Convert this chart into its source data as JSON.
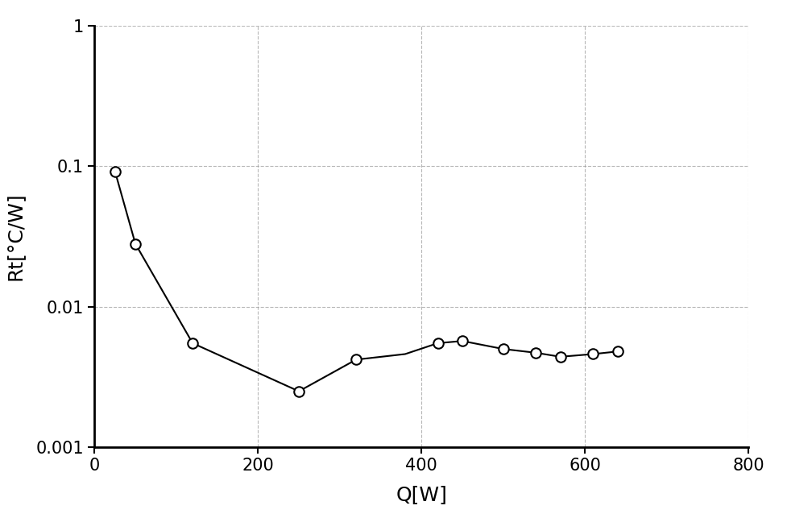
{
  "x": [
    25,
    50,
    120,
    250,
    320,
    380,
    420,
    450,
    500,
    540,
    570,
    610,
    640
  ],
  "y": [
    0.092,
    0.028,
    0.0055,
    0.0025,
    0.0042,
    0.0046,
    0.0055,
    0.0057,
    0.005,
    0.0047,
    0.0044,
    0.0046,
    0.0048
  ],
  "marker_x": [
    25,
    50,
    120,
    250,
    320,
    420,
    450,
    500,
    540,
    570,
    610,
    640
  ],
  "marker_y": [
    0.092,
    0.028,
    0.0055,
    0.0025,
    0.0042,
    0.0055,
    0.0057,
    0.005,
    0.0047,
    0.0044,
    0.0046,
    0.0048
  ],
  "xlabel": "Q[W]",
  "ylabel": "Rt[°C/W]",
  "xlim": [
    0,
    800
  ],
  "ylim": [
    0.001,
    1
  ],
  "xticks": [
    0,
    200,
    400,
    600,
    800
  ],
  "yticks": [
    0.001,
    0.01,
    0.1,
    1
  ],
  "ytick_labels": [
    "0.001",
    "0.01",
    "0.1",
    "1"
  ],
  "line_color": "#000000",
  "marker_color": "#ffffff",
  "marker_edge_color": "#000000",
  "grid_color": "#999999",
  "background_color": "#ffffff",
  "xlabel_fontsize": 18,
  "ylabel_fontsize": 18,
  "tick_fontsize": 15
}
